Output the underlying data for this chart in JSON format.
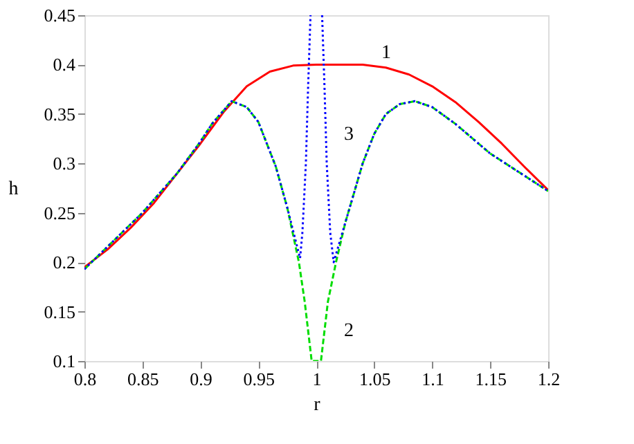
{
  "chart_data": {
    "type": "line",
    "xlabel": "r",
    "ylabel": "h",
    "xlim": [
      0.8,
      1.2
    ],
    "xticks": [
      0.8,
      0.85,
      0.9,
      0.95,
      1,
      1.05,
      1.1,
      1.15,
      1.2
    ],
    "ylim": [
      0.1,
      0.45
    ],
    "yticks": [
      0.1,
      0.15,
      0.2,
      0.25,
      0.3,
      0.35,
      0.4,
      0.45
    ],
    "grid": false,
    "legend": false,
    "marker": "none",
    "series": [
      {
        "color": "#ff0000",
        "line_style": "solid",
        "x": [
          0.8,
          0.82,
          0.84,
          0.86,
          0.88,
          0.9,
          0.92,
          0.94,
          0.96,
          0.98,
          1.0,
          1.02,
          1.04,
          1.06,
          1.08,
          1.1,
          1.12,
          1.14,
          1.16,
          1.18,
          1.2
        ],
        "values": [
          0.195,
          0.213,
          0.235,
          0.26,
          0.29,
          0.32,
          0.352,
          0.378,
          0.393,
          0.399,
          0.4,
          0.4,
          0.4,
          0.397,
          0.39,
          0.378,
          0.362,
          0.342,
          0.32,
          0.296,
          0.273
        ]
      },
      {
        "color": "#00dd00",
        "line_style": "dashed",
        "x": [
          0.8,
          0.85,
          0.88,
          0.9,
          0.91,
          0.927,
          0.94,
          0.95,
          0.965,
          0.975,
          0.985,
          0.99,
          0.996,
          1.004,
          1.01,
          1.017,
          1.025,
          1.04,
          1.05,
          1.06,
          1.072,
          1.085,
          1.1,
          1.12,
          1.15,
          1.2
        ],
        "values": [
          0.193,
          0.25,
          0.29,
          0.322,
          0.34,
          0.363,
          0.357,
          0.342,
          0.297,
          0.255,
          0.2,
          0.16,
          0.1,
          0.1,
          0.16,
          0.2,
          0.24,
          0.3,
          0.33,
          0.35,
          0.36,
          0.363,
          0.357,
          0.34,
          0.31,
          0.272
        ]
      },
      {
        "color": "#0000ff",
        "line_style": "dotted",
        "x": [
          0.8,
          0.85,
          0.88,
          0.9,
          0.91,
          0.927,
          0.94,
          0.95,
          0.965,
          0.975,
          0.986,
          0.988,
          0.991,
          0.993,
          0.995,
          1.0,
          1.005,
          1.007,
          1.009,
          1.012,
          1.015,
          1.025,
          1.04,
          1.05,
          1.06,
          1.072,
          1.085,
          1.1,
          1.12,
          1.15,
          1.2
        ],
        "values": [
          0.193,
          0.25,
          0.29,
          0.322,
          0.34,
          0.363,
          0.357,
          0.342,
          0.297,
          0.255,
          0.204,
          0.23,
          0.3,
          0.38,
          0.45,
          null,
          0.45,
          0.38,
          0.3,
          0.23,
          0.2,
          0.24,
          0.3,
          0.33,
          0.35,
          0.36,
          0.363,
          0.357,
          0.34,
          0.31,
          0.272
        ]
      }
    ],
    "annotations": [
      "1",
      "2",
      "3"
    ]
  }
}
